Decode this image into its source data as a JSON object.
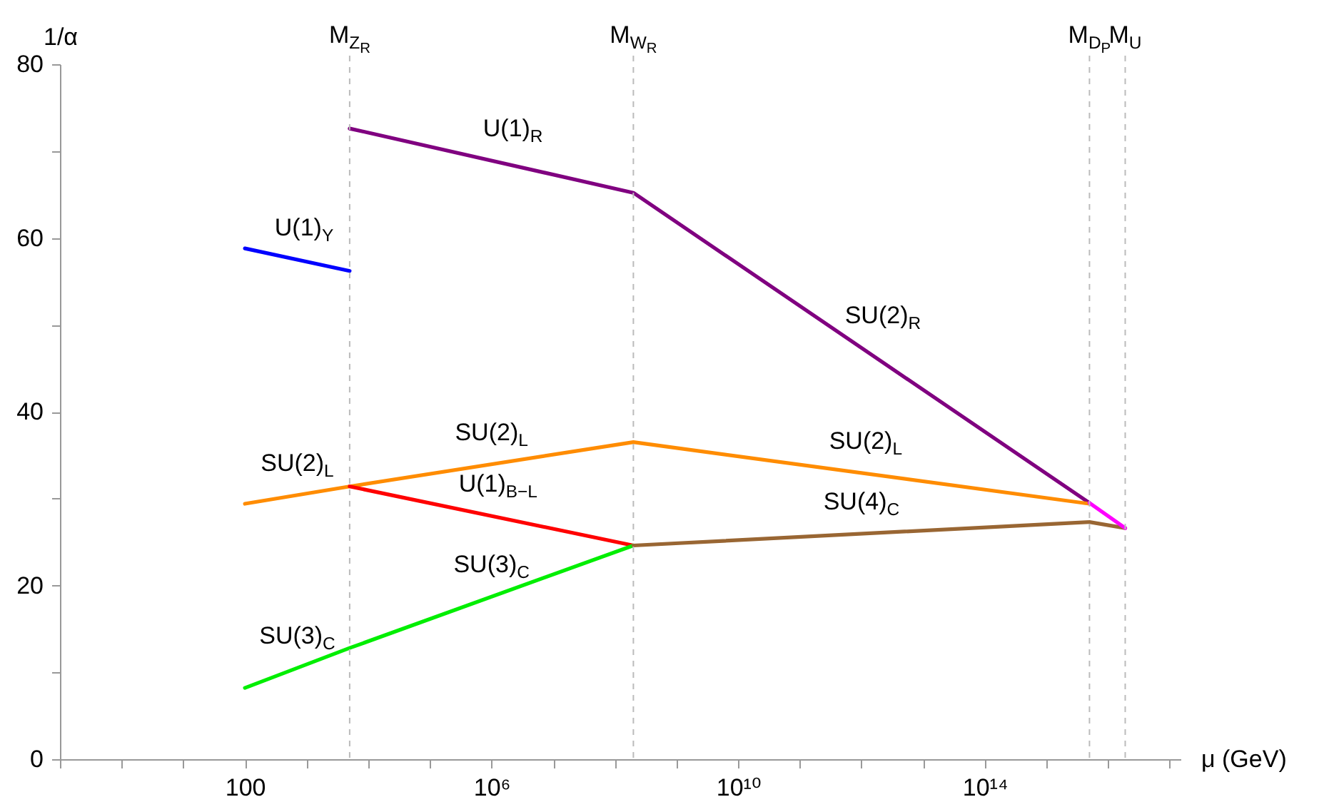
{
  "chart_data": {
    "type": "line",
    "xlabel": "μ (GeV)",
    "ylabel": "1/α",
    "log": "x",
    "xlim": [
      0.1,
      1.5e+17
    ],
    "xticks": [
      {
        "value": 0.1,
        "label": null
      },
      {
        "value": 1,
        "label": null
      },
      {
        "value": 10,
        "label": null
      },
      100,
      {
        "value": 1000,
        "label": null
      },
      {
        "value": 10000,
        "label": null
      },
      {
        "value": 100000,
        "label": null
      },
      {
        "value": 1000000,
        "label": "10⁶"
      },
      {
        "value": 10000000.0,
        "label": null
      },
      {
        "value": 100000000.0,
        "label": null
      },
      {
        "value": 1000000000.0,
        "label": null
      },
      {
        "value": 10000000000.0,
        "label": "10¹⁰"
      },
      {
        "value": 100000000000.0,
        "label": null
      },
      {
        "value": 1000000000000.0,
        "label": null
      },
      {
        "value": 10000000000000.0,
        "label": null
      },
      {
        "value": 100000000000000.0,
        "label": "10¹⁴"
      },
      {
        "value": 1000000000000000.0,
        "label": null
      },
      {
        "value": 1e+16,
        "label": null
      },
      {
        "value": 1e+17,
        "label": null
      }
    ],
    "ylim": [
      0,
      80
    ],
    "yticks": [
      0,
      {
        "value": 10,
        "label": null
      },
      20,
      {
        "value": 30,
        "label": null
      },
      40,
      {
        "value": 50,
        "label": null
      },
      60,
      {
        "value": 70,
        "label": null
      },
      80
    ],
    "series": [
      {
        "name": "U(1)$_{Y}$",
        "color": "#0000ff",
        "x": [
          100,
          5000
        ],
        "values": [
          58.8,
          56.2
        ]
      },
      {
        "color": "#800080",
        "x": [
          5000,
          200000000.0,
          5000000000000000.0
        ],
        "values": [
          72.6,
          65.2,
          29.5
        ]
      },
      {
        "name": "SU(2)$_{L}$",
        "color": "#ff8c00",
        "x": [
          100,
          5000,
          200000000.0,
          5000000000000000.0
        ],
        "values": [
          29.4,
          31.4,
          36.5,
          29.4
        ]
      },
      {
        "name": "U(1)$_{B−L}$",
        "color": "#ff0000",
        "x": [
          5000,
          200000000.0
        ],
        "values": [
          31.4,
          24.6
        ]
      },
      {
        "name": "SU(3)$_{C}$",
        "color": "#00ee00",
        "x": [
          100,
          5000,
          200000000.0
        ],
        "values": [
          8.2,
          12.8,
          24.6
        ]
      },
      {
        "name": "SU(4)$_{C}$",
        "color": "#996633",
        "x": [
          200000000.0,
          5000000000000000.0,
          1.9e+16
        ],
        "values": [
          24.6,
          27.3,
          26.6
        ]
      },
      {
        "color": "#ff00ff",
        "x": [
          5000000000000000.0,
          1.9e+16
        ],
        "values": [
          29.5,
          26.6
        ]
      }
    ],
    "ref_lines": [
      {
        "axis": "x",
        "value": 5000,
        "label": "M$_{Z}$$_{R}$",
        "color": "#bbbbbb",
        "line_style": "dashed"
      },
      {
        "axis": "x",
        "value": 200000000.0,
        "label": "M$_{W}$$_{R}$",
        "color": "#bbbbbb",
        "line_style": "dashed"
      },
      {
        "axis": "x",
        "value": 5000000000000000.0,
        "label": "M$_{D}$$_{P}$",
        "color": "#bbbbbb",
        "line_style": "dashed"
      },
      {
        "axis": "x",
        "value": 1.9e+16,
        "label": "M$_{U}$",
        "color": "#bbbbbb",
        "line_style": "dashed"
      }
    ],
    "annotations": [
      {
        "text": "U(1)$_{R}$",
        "x": 1000000,
        "y": 68.9
      },
      {
        "text": "SU(2)$_{R}$",
        "x": 1000000000000.0,
        "y": 47.4
      }
    ]
  }
}
